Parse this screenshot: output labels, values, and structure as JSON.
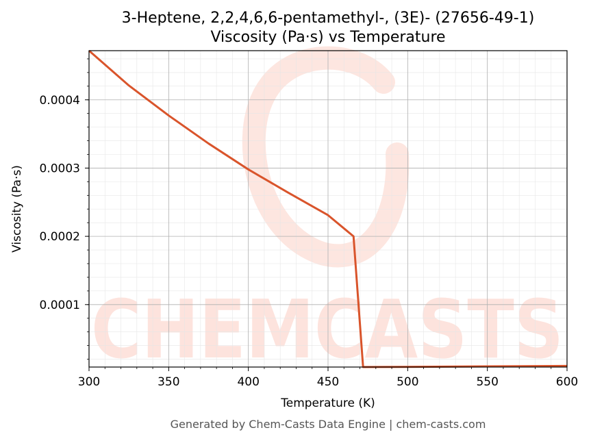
{
  "colors": {
    "line": "#d9542b",
    "watermark": "#fde3dd",
    "grid_major": "#b0b0b0",
    "grid_minor": "#e6e6e6",
    "footer": "#555555"
  },
  "watermark": {
    "text": "CHEMCASTS"
  },
  "footer": {
    "text": "Generated by Chem-Casts Data Engine | chem-casts.com"
  },
  "chart_data": {
    "type": "line",
    "title": "3-Heptene, 2,2,4,6,6-pentamethyl-, (3E)- (27656-49-1)",
    "subtitle": "Viscosity (Pa·s) vs Temperature",
    "xlabel": "Temperature (K)",
    "ylabel": "Viscosity (Pa·s)",
    "xlim": [
      300,
      600
    ],
    "ylim": [
      8.5e-06,
      0.000472
    ],
    "x_ticks": [
      300,
      350,
      400,
      450,
      500,
      550,
      600
    ],
    "x_tick_labels": [
      "300",
      "350",
      "400",
      "450",
      "500",
      "550",
      "600"
    ],
    "y_ticks": [
      0.0001,
      0.0002,
      0.0003,
      0.0004
    ],
    "y_tick_labels": [
      "0.0001",
      "0.0002",
      "0.0003",
      "0.0004"
    ],
    "grid": true,
    "legend": "none",
    "series": [
      {
        "x": [
          300,
          325,
          350,
          375,
          400,
          425,
          450,
          466,
          472,
          500,
          550,
          600
        ],
        "y": [
          0.000472,
          0.000421,
          0.000377,
          0.000336,
          0.000298,
          0.000264,
          0.000231,
          0.0002,
          8.5e-06,
          8.8e-06,
          9.5e-06,
          1.01e-05
        ]
      }
    ]
  }
}
